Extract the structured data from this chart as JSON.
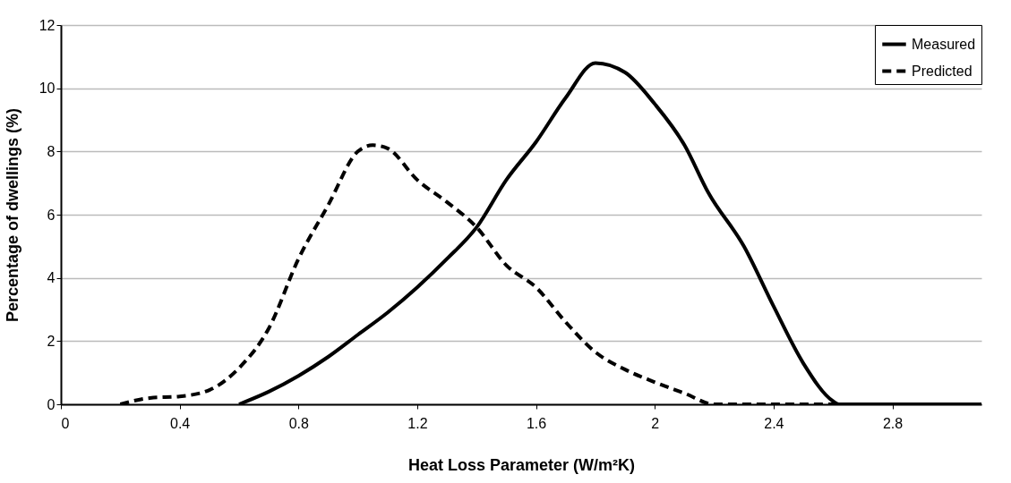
{
  "chart_data": {
    "type": "line",
    "xlabel": "Heat Loss Parameter (W/m²K)",
    "ylabel": "Percentage of dwellings (%)",
    "xlim": [
      0,
      3.1
    ],
    "xticks": [
      0,
      0.4,
      0.8,
      1.2,
      1.6,
      2,
      2.4,
      2.8
    ],
    "ylim": [
      0,
      12
    ],
    "yticks": [
      0,
      2,
      4,
      6,
      8,
      10,
      12
    ],
    "grid": "y",
    "legend": "top right",
    "marker": "none",
    "series": [
      {
        "name": "Measured",
        "color": "#000000",
        "line_style": "solid",
        "x": [
          0.6,
          0.7,
          0.8,
          0.9,
          1.0,
          1.1,
          1.2,
          1.3,
          1.4,
          1.5,
          1.6,
          1.7,
          1.8,
          1.9,
          2.0,
          2.1,
          2.18,
          2.3,
          2.4,
          2.5,
          2.6,
          2.62,
          3.1
        ],
        "values": [
          0,
          0.4,
          0.9,
          1.5,
          2.2,
          2.9,
          3.7,
          4.6,
          5.6,
          7.1,
          8.3,
          9.7,
          10.8,
          10.5,
          9.5,
          8.2,
          6.7,
          5.0,
          3.1,
          1.3,
          0.1,
          0,
          0
        ]
      },
      {
        "name": "Predicted",
        "color": "#000000",
        "line_style": "dashed",
        "x": [
          0.2,
          0.3,
          0.4,
          0.5,
          0.6,
          0.7,
          0.8,
          0.9,
          1.0,
          1.05,
          1.1,
          1.2,
          1.3,
          1.4,
          1.5,
          1.6,
          1.7,
          1.8,
          1.9,
          2.0,
          2.1,
          2.2,
          3.0
        ],
        "values": [
          0,
          0.2,
          0.25,
          0.45,
          1.15,
          2.4,
          4.6,
          6.3,
          8.0,
          8.2,
          8.1,
          7.1,
          6.4,
          5.6,
          4.4,
          3.7,
          2.6,
          1.65,
          1.1,
          0.7,
          0.35,
          0,
          0
        ]
      }
    ]
  }
}
